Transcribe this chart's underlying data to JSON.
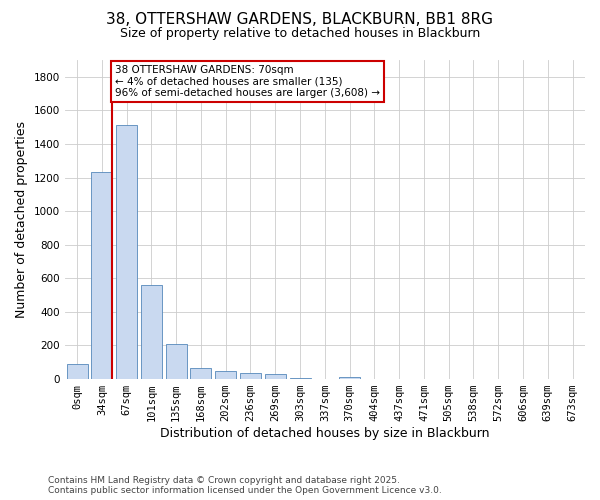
{
  "title_line1": "38, OTTERSHAW GARDENS, BLACKBURN, BB1 8RG",
  "title_line2": "Size of property relative to detached houses in Blackburn",
  "xlabel": "Distribution of detached houses by size in Blackburn",
  "ylabel": "Number of detached properties",
  "annotation_line1": "38 OTTERSHAW GARDENS: 70sqm",
  "annotation_line2": "← 4% of detached houses are smaller (135)",
  "annotation_line3": "96% of semi-detached houses are larger (3,608) →",
  "footer_line1": "Contains HM Land Registry data © Crown copyright and database right 2025.",
  "footer_line2": "Contains public sector information licensed under the Open Government Licence v3.0.",
  "categories": [
    "0sqm",
    "34sqm",
    "67sqm",
    "101sqm",
    "135sqm",
    "168sqm",
    "202sqm",
    "236sqm",
    "269sqm",
    "303sqm",
    "337sqm",
    "370sqm",
    "404sqm",
    "437sqm",
    "471sqm",
    "505sqm",
    "538sqm",
    "572sqm",
    "606sqm",
    "639sqm",
    "673sqm"
  ],
  "bar_values": [
    90,
    1235,
    1510,
    560,
    210,
    65,
    47,
    38,
    28,
    5,
    3,
    12,
    3,
    1,
    0,
    0,
    0,
    0,
    0,
    0,
    0
  ],
  "bar_color": "#c9d9f0",
  "bar_edge_color": "#5588bb",
  "vline_color": "#cc0000",
  "annotation_box_color": "#cc0000",
  "background_color": "#ffffff",
  "grid_color": "#cccccc",
  "ylim": [
    0,
    1900
  ],
  "yticks": [
    0,
    200,
    400,
    600,
    800,
    1000,
    1200,
    1400,
    1600,
    1800
  ],
  "title_fontsize": 11,
  "subtitle_fontsize": 9,
  "ann_fontsize": 7.5,
  "footer_fontsize": 6.5,
  "tick_fontsize": 7.5,
  "axis_label_fontsize": 9
}
